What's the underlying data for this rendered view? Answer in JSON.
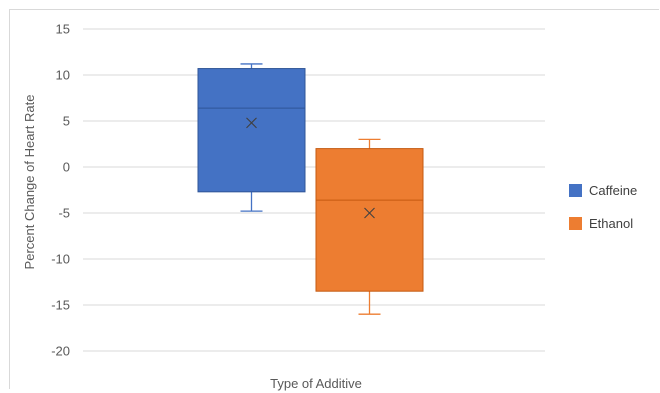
{
  "chart_data": {
    "type": "box",
    "title": "",
    "xlabel": "Type of Additive",
    "ylabel": "Percent Change of Heart Rate",
    "ylim": [
      -20,
      15
    ],
    "yticks": [
      15,
      10,
      5,
      0,
      -5,
      -10,
      -15,
      -20
    ],
    "ytick_labels": [
      "15",
      "10",
      "5",
      "0",
      "-5",
      "-10",
      "-15",
      "-20"
    ],
    "grid": true,
    "legend_position": "right",
    "series": [
      {
        "name": "Caffeine",
        "color": "#4472C4",
        "min": -4.8,
        "q1": -2.7,
        "median": 6.4,
        "q3": 10.7,
        "max": 11.2,
        "mean": 4.8
      },
      {
        "name": "Ethanol",
        "color": "#ED7D31",
        "min": -16.0,
        "q1": -13.5,
        "median": -3.6,
        "q3": 2.0,
        "max": 3.0,
        "mean": -5.0
      }
    ]
  }
}
